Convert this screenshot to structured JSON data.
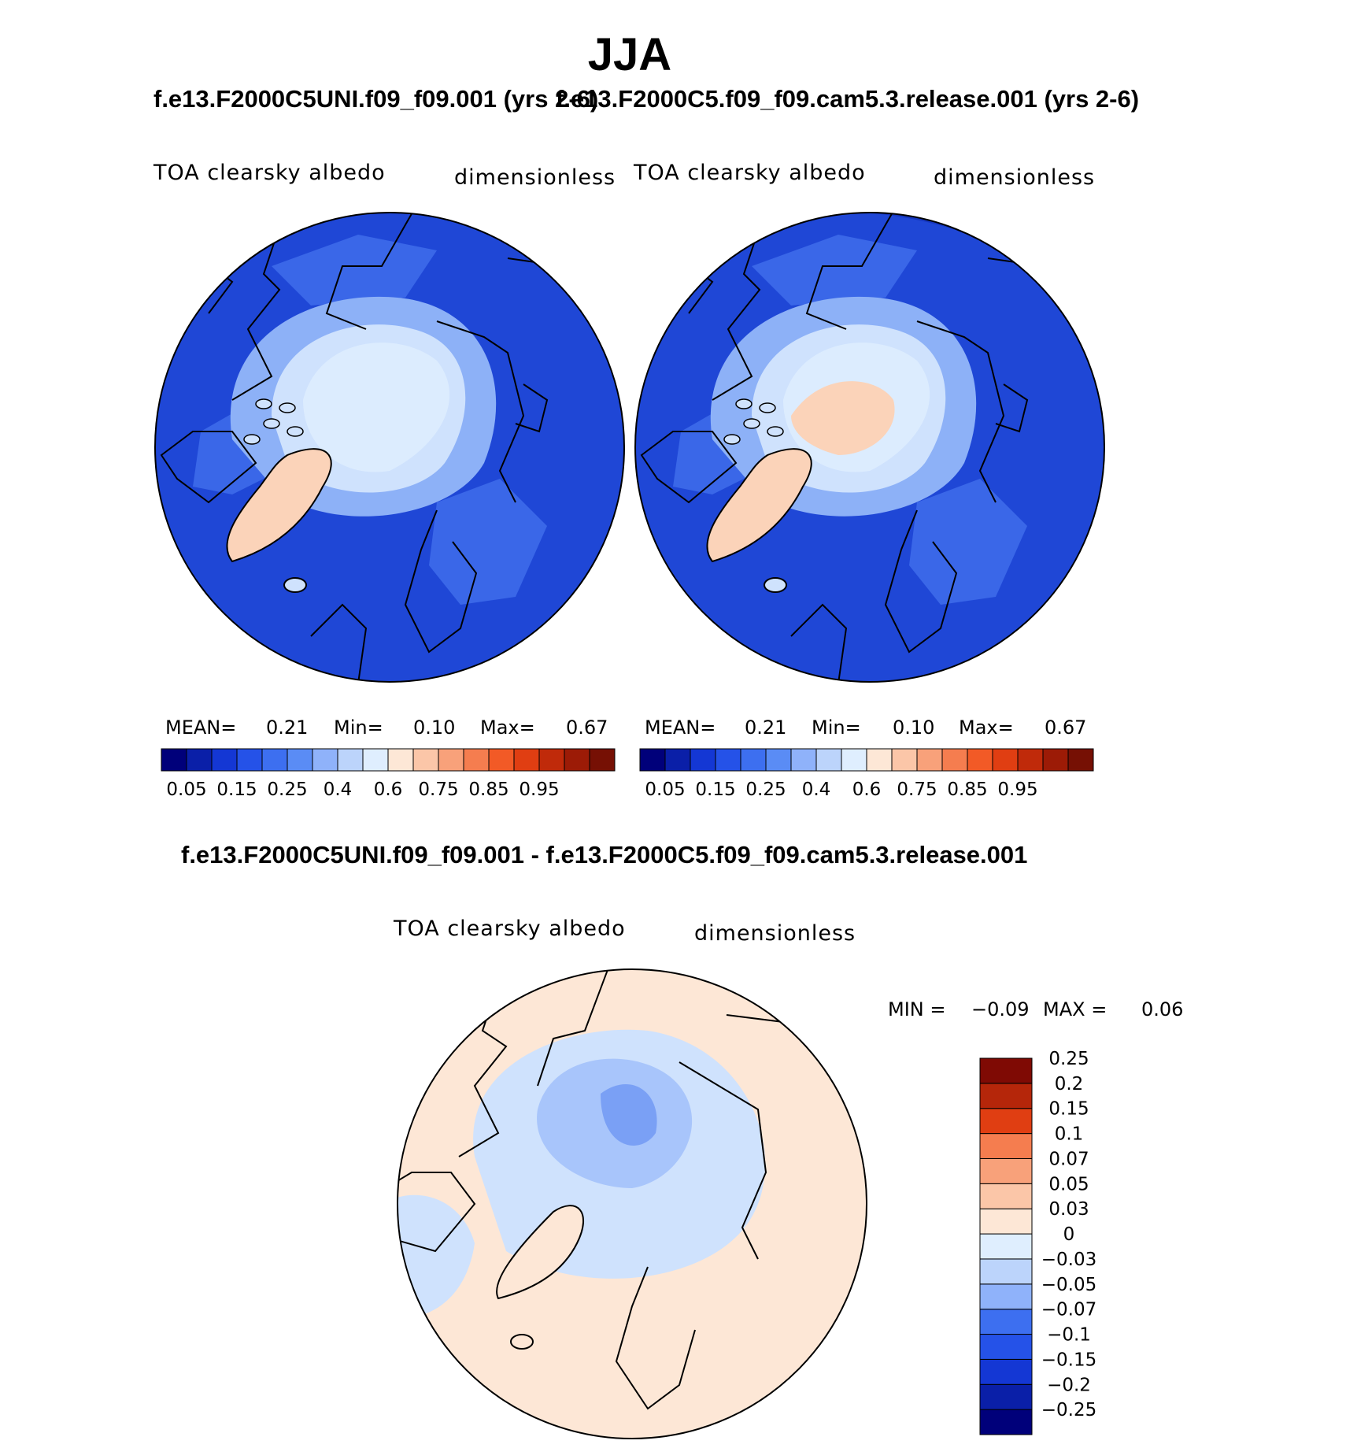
{
  "season": "JJA",
  "panels": [
    {
      "case_title": "f.e13.F2000C5UNI.f09_f09.001 (yrs 2-6)",
      "variable": "TOA clearsky albedo",
      "units": "dimensionless",
      "stats": {
        "mean_label": "MEAN=",
        "mean": "0.21",
        "min_label": "Min=",
        "min": "0.10",
        "max_label": "Max=",
        "max": "0.67"
      }
    },
    {
      "case_title": "f.e13.F2000C5.f09_f09.cam5.3.release.001 (yrs 2-6)",
      "variable": "TOA clearsky albedo",
      "units": "dimensionless",
      "stats": {
        "mean_label": "MEAN=",
        "mean": "0.21",
        "min_label": "Min=",
        "min": "0.10",
        "max_label": "Max=",
        "max": "0.67"
      }
    }
  ],
  "difference": {
    "title": "f.e13.F2000C5UNI.f09_f09.001 - f.e13.F2000C5.f09_f09.cam5.3.release.001",
    "variable": "TOA clearsky albedo",
    "units": "dimensionless",
    "min_label": "MIN =",
    "min": "−0.09",
    "max_label": "MAX =",
    "max": "0.06"
  },
  "colorbar_abs": {
    "colors": [
      "#00007a",
      "#0a1fa8",
      "#1437d4",
      "#2552e8",
      "#3d6ff0",
      "#5a8cf5",
      "#8fb2fa",
      "#bcd4fb",
      "#dfeefe",
      "#fde7d6",
      "#fbc6a8",
      "#f8a17a",
      "#f57d4f",
      "#f25a26",
      "#e03e12",
      "#c02a0a",
      "#9c1b06",
      "#761004"
    ],
    "tick_labels": [
      "0.05",
      "0.15",
      "0.25",
      "0.4",
      "0.6",
      "0.75",
      "0.85",
      "0.95"
    ]
  },
  "colorbar_diff": {
    "colors": [
      "#00007a",
      "#0a1fa8",
      "#1437d4",
      "#2552e8",
      "#3d6ff0",
      "#8fb2fa",
      "#bcd4fb",
      "#dfeefe",
      "#fde7d6",
      "#fbc6a8",
      "#f8a17a",
      "#f57d4f",
      "#e03e12",
      "#b5260a",
      "#7f0a04"
    ],
    "tick_labels": [
      "−0.25",
      "−0.2",
      "−0.15",
      "−0.1",
      "−0.07",
      "−0.05",
      "−0.03",
      "0",
      "0.03",
      "0.05",
      "0.07",
      "0.1",
      "0.15",
      "0.2",
      "0.25"
    ]
  },
  "map_colors": {
    "ocean": "#1f47d6",
    "deep": "#1536bf",
    "mid": "#3a67e8",
    "light": "#8db1f7",
    "pale": "#cfe2fd",
    "ice": "#dcecfe",
    "peach": "#fbd3b9",
    "diff_bg": "#fde7d6",
    "diff_light": "#cfe2fd",
    "diff_mid": "#a8c5fb",
    "diff_strong": "#7aa0f5"
  }
}
